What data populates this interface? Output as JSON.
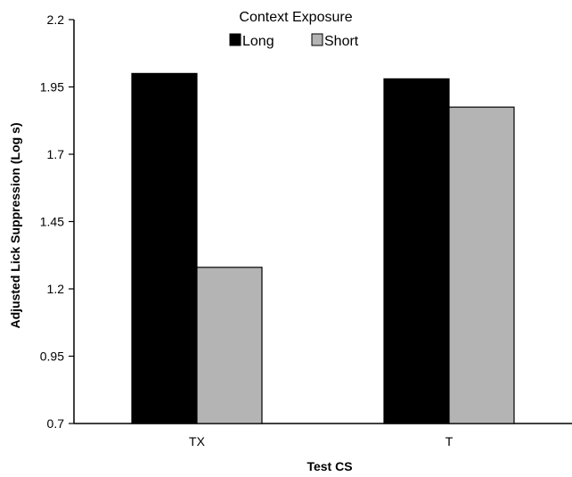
{
  "chart_data": {
    "type": "bar",
    "title": "",
    "xlabel": "Test CS",
    "ylabel": "Adjusted Lick Suppression (Log s)",
    "categories": [
      "TX",
      "T"
    ],
    "series": [
      {
        "name": "Long",
        "values": [
          2.0,
          1.98
        ],
        "color": "#000000"
      },
      {
        "name": "Short",
        "values": [
          1.28,
          1.875
        ],
        "color": "#b4b4b4"
      }
    ],
    "ylim": [
      0.7,
      2.2
    ],
    "yticks": [
      "0.7",
      "0.95",
      "1.2",
      "1.45",
      "1.7",
      "1.95",
      "2.2"
    ],
    "grid": false,
    "legend": {
      "title": "Context Exposure",
      "position": "top-center"
    }
  }
}
